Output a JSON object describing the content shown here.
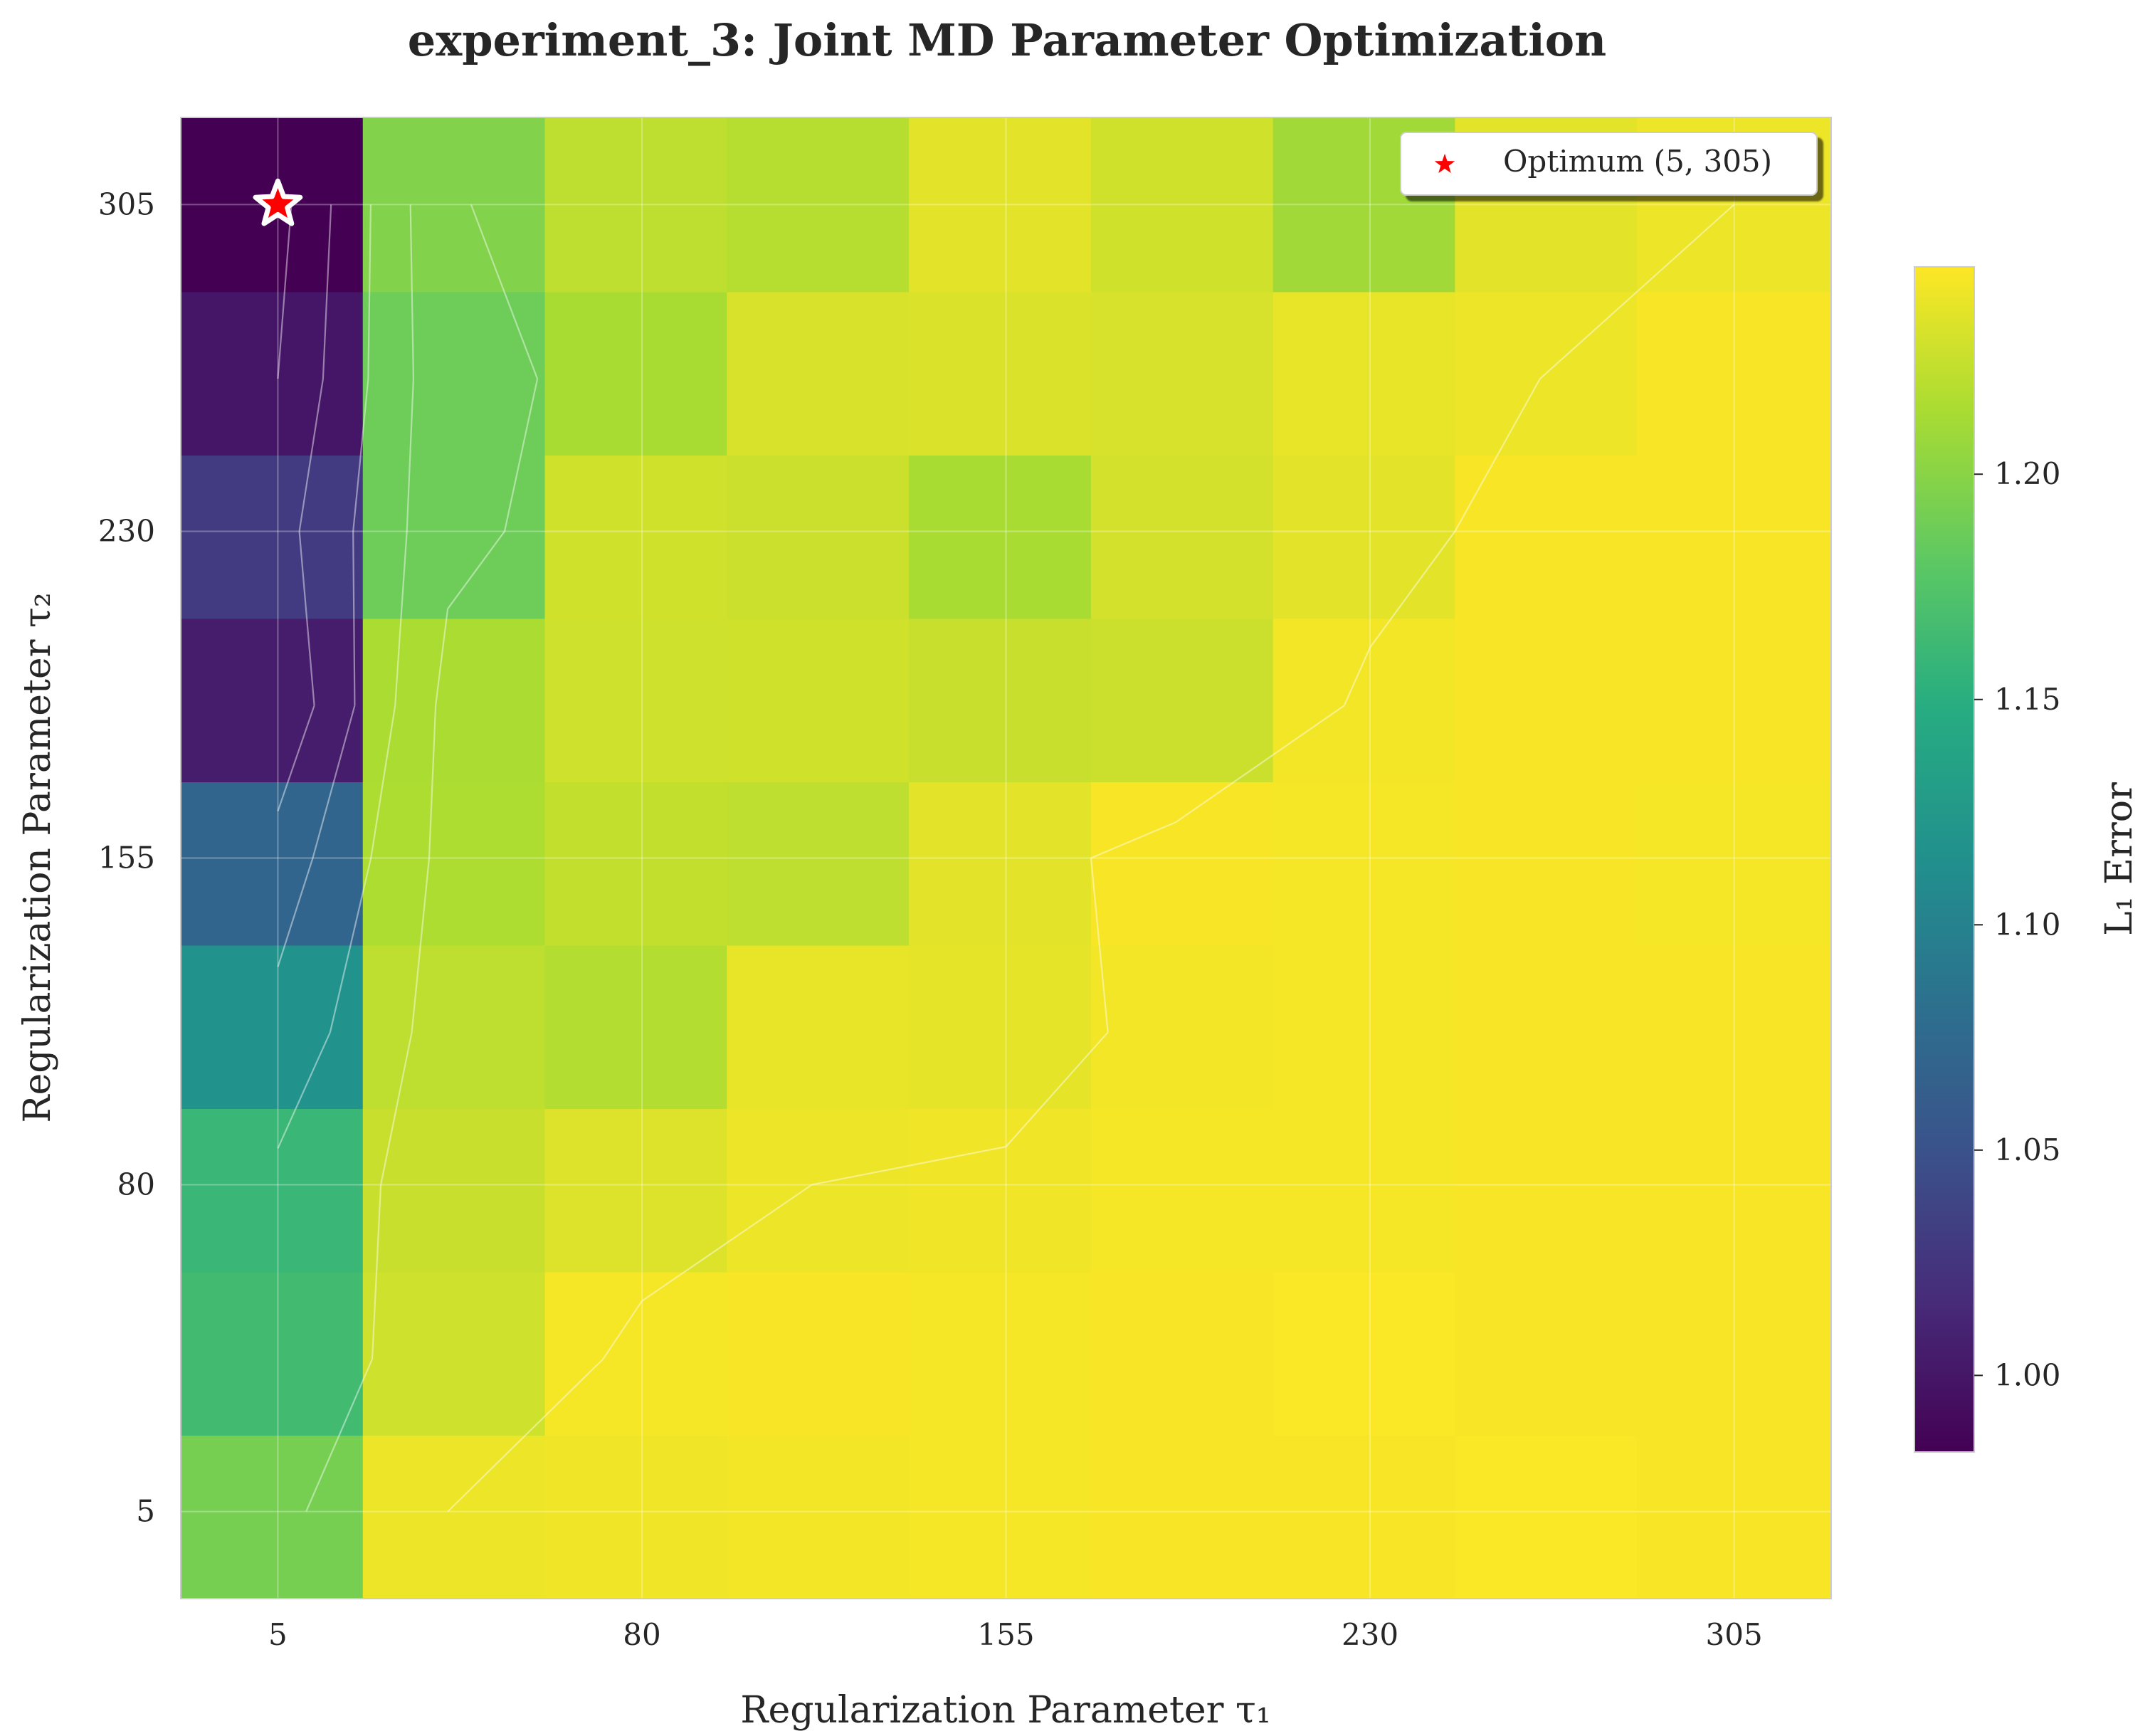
{
  "chart_data": {
    "type": "heatmap",
    "title": "experiment_3: Joint MD Parameter Optimization",
    "xlabel": "Regularization Parameter τ₁",
    "ylabel": "Regularization Parameter τ₂",
    "colorbar_label": "L₁ Error",
    "colormap": "viridis",
    "x": [
      5,
      40,
      80,
      115,
      155,
      190,
      230,
      265,
      305
    ],
    "y": [
      5,
      40,
      80,
      115,
      155,
      190,
      230,
      265,
      305
    ],
    "xlim": [
      -15,
      325
    ],
    "ylim": [
      -15,
      325
    ],
    "x_ticks": [
      5,
      80,
      155,
      230,
      305
    ],
    "y_ticks": [
      5,
      80,
      155,
      230,
      305
    ],
    "colorbar_range": [
      0.983,
      1.246
    ],
    "colorbar_ticks": [
      1.0,
      1.05,
      1.1,
      1.15,
      1.2
    ],
    "z": [
      [
        1.192,
        1.24,
        1.241,
        1.242,
        1.243,
        1.244,
        1.244,
        1.245,
        1.244
      ],
      [
        1.165,
        1.228,
        1.243,
        1.244,
        1.243,
        1.244,
        1.245,
        1.244,
        1.244
      ],
      [
        1.16,
        1.226,
        1.234,
        1.24,
        1.241,
        1.243,
        1.243,
        1.244,
        1.244
      ],
      [
        1.118,
        1.222,
        1.218,
        1.238,
        1.237,
        1.242,
        1.243,
        1.244,
        1.244
      ],
      [
        1.07,
        1.216,
        1.224,
        1.222,
        1.236,
        1.244,
        1.243,
        1.244,
        1.243
      ],
      [
        1.005,
        1.215,
        1.228,
        1.229,
        1.226,
        1.227,
        1.242,
        1.244,
        1.244
      ],
      [
        1.03,
        1.188,
        1.229,
        1.227,
        1.214,
        1.23,
        1.236,
        1.244,
        1.244
      ],
      [
        1.0,
        1.188,
        1.214,
        1.232,
        1.233,
        1.231,
        1.238,
        1.24,
        1.244
      ],
      [
        0.983,
        1.197,
        1.222,
        1.219,
        1.236,
        1.229,
        1.21,
        1.236,
        1.24
      ]
    ],
    "contour_levels": [
      1.0,
      1.05,
      1.1,
      1.15,
      1.2,
      1.24
    ],
    "optimum": {
      "x": 5,
      "y": 305,
      "legend_label": "Optimum (5, 305)"
    },
    "legend_position": "top-right",
    "grid": true
  }
}
